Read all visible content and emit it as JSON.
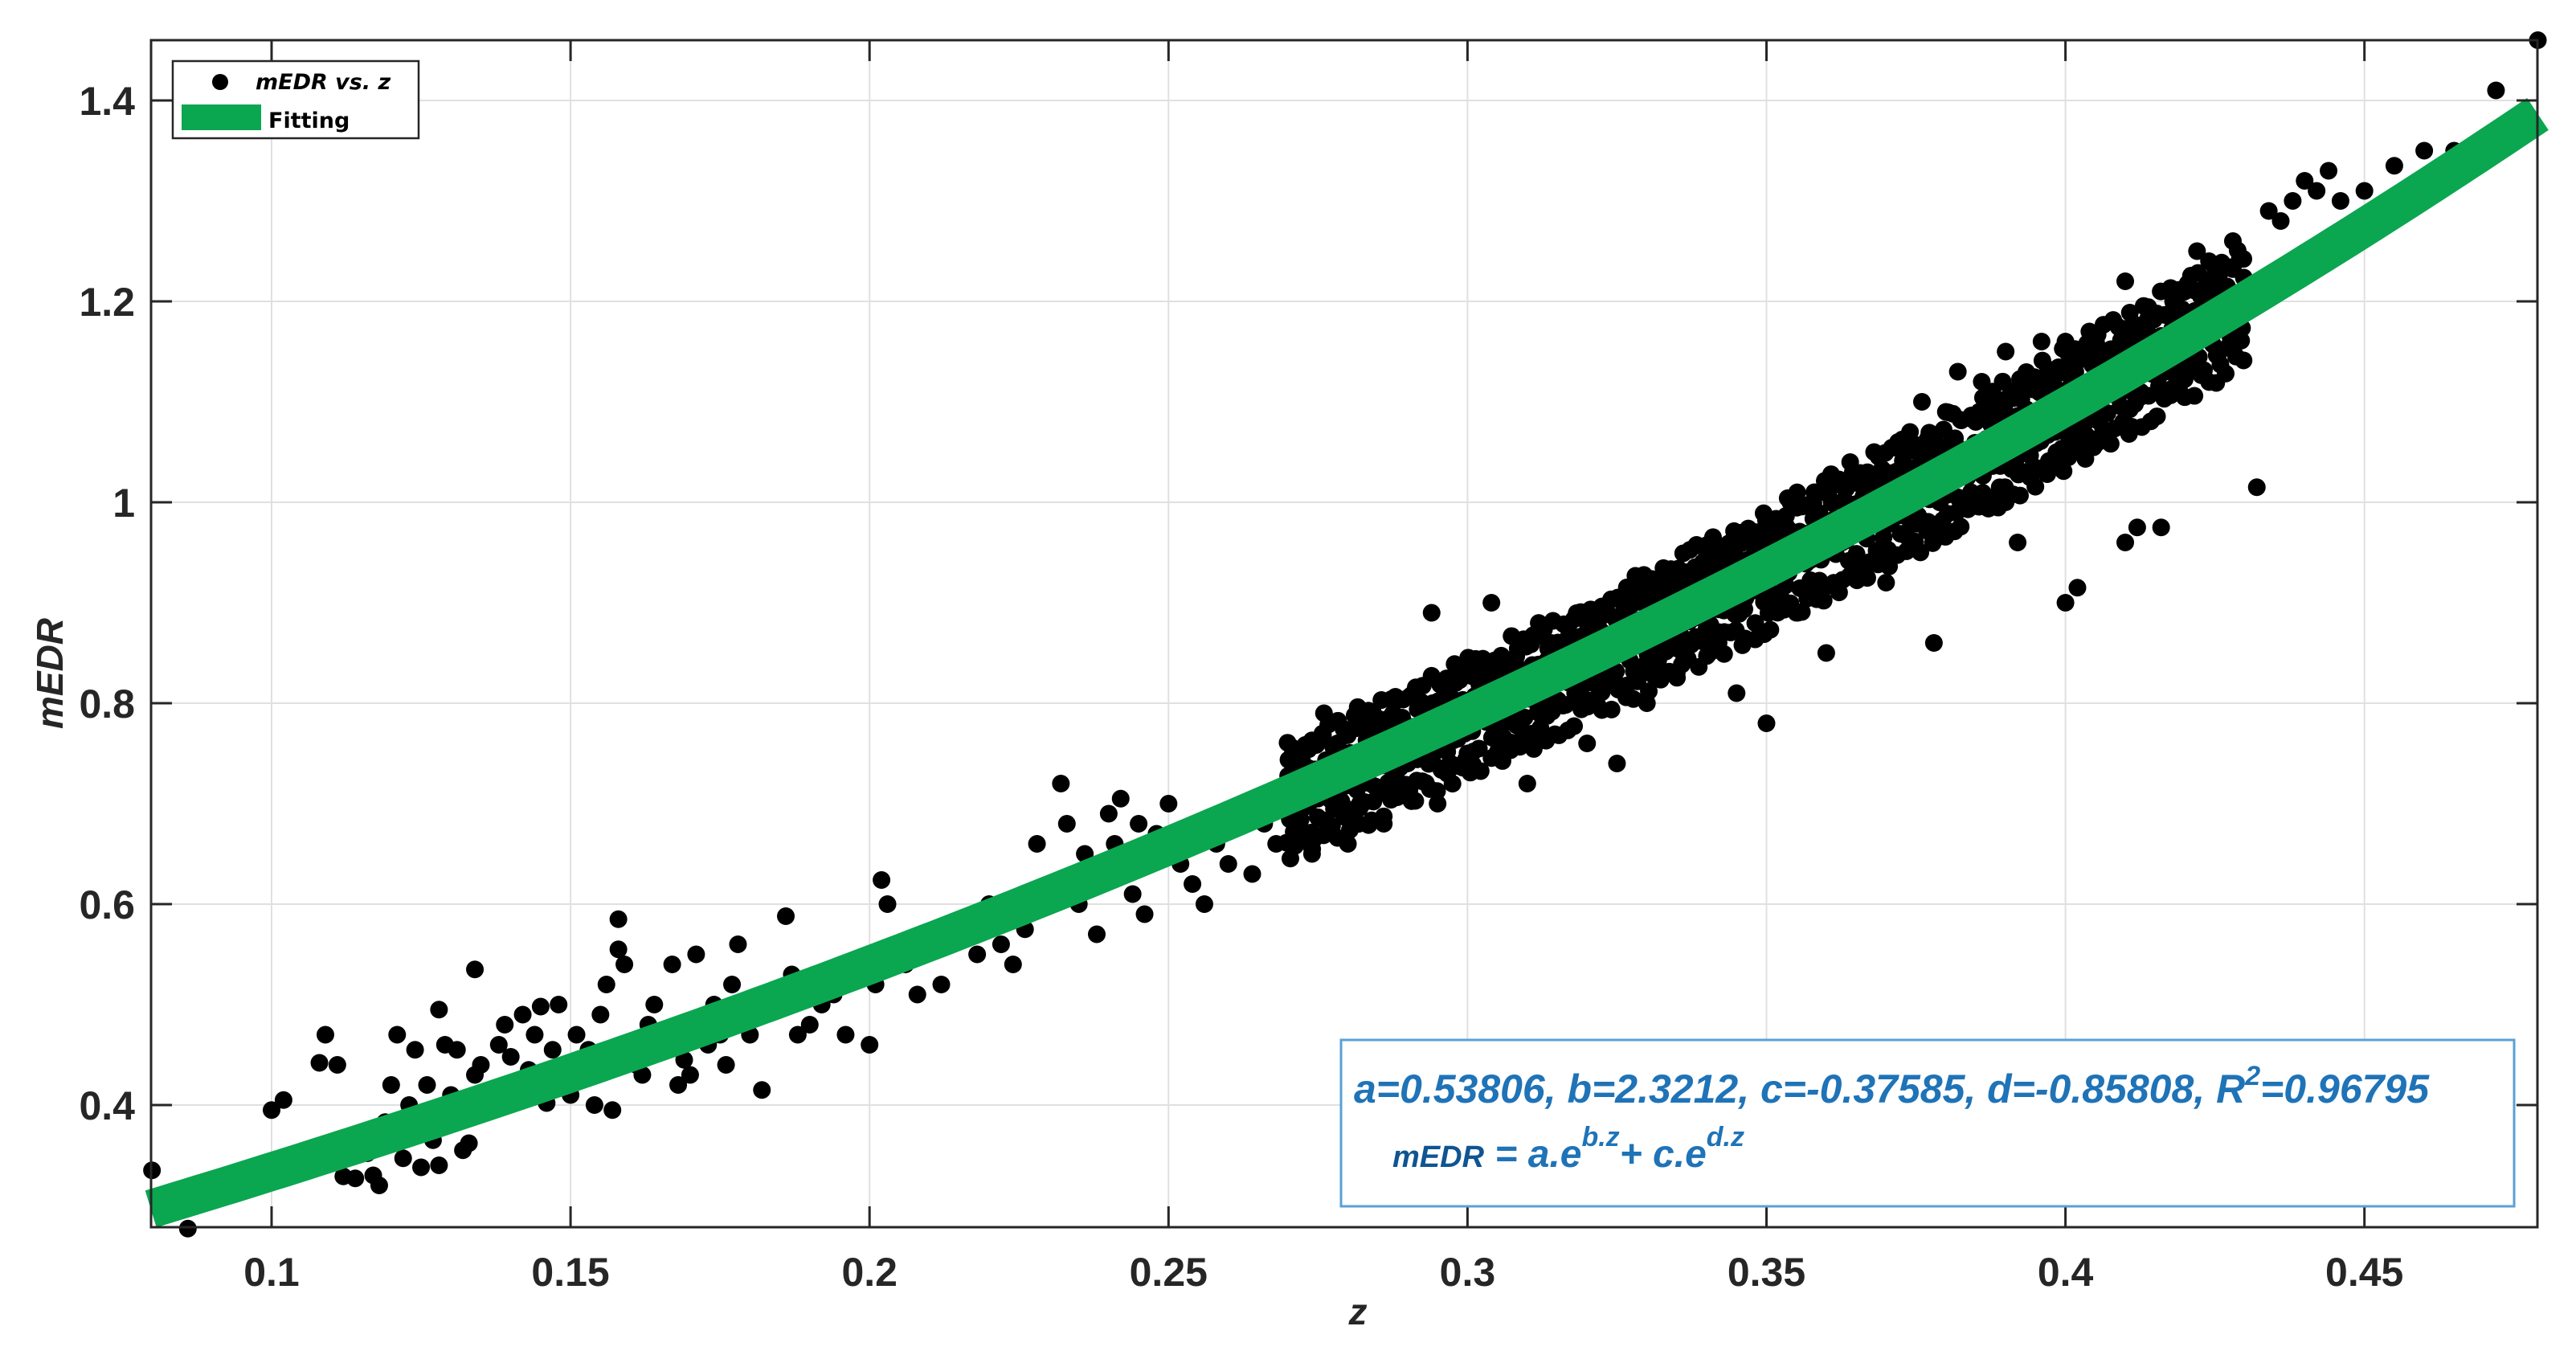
{
  "chart_data": {
    "type": "scatter",
    "title": "",
    "xlabel": "z",
    "ylabel": "mEDR",
    "xlim": [
      0.0798,
      0.479
    ],
    "ylim": [
      0.278,
      1.46
    ],
    "grid": true,
    "legend_position": "upper-left",
    "xticks": [
      0.1,
      0.15,
      0.2,
      0.25,
      0.3,
      0.35,
      0.4,
      0.45
    ],
    "xtick_labels": [
      "0.1",
      "0.15",
      "0.2",
      "0.25",
      "0.3",
      "0.35",
      "0.4",
      "0.45"
    ],
    "yticks": [
      0.4,
      0.6,
      0.8,
      1.0,
      1.2,
      1.4
    ],
    "ytick_labels": [
      "0.4",
      "0.6",
      "0.8",
      "1",
      "1.2",
      "1.4"
    ],
    "series": [
      {
        "name": "mEDR vs. z",
        "type": "scatter",
        "color": "#000000",
        "points": [
          [
            0.08,
            0.335
          ],
          [
            0.086,
            0.277
          ],
          [
            0.1,
            0.395
          ],
          [
            0.102,
            0.405
          ],
          [
            0.101,
            0.325
          ],
          [
            0.108,
            0.442
          ],
          [
            0.109,
            0.47
          ],
          [
            0.111,
            0.44
          ],
          [
            0.112,
            0.329
          ],
          [
            0.114,
            0.327
          ],
          [
            0.116,
            0.352
          ],
          [
            0.117,
            0.33
          ],
          [
            0.118,
            0.32
          ],
          [
            0.119,
            0.383
          ],
          [
            0.12,
            0.42
          ],
          [
            0.121,
            0.47
          ],
          [
            0.122,
            0.347
          ],
          [
            0.123,
            0.4
          ],
          [
            0.124,
            0.455
          ],
          [
            0.125,
            0.338
          ],
          [
            0.126,
            0.42
          ],
          [
            0.127,
            0.365
          ],
          [
            0.128,
            0.495
          ],
          [
            0.128,
            0.34
          ],
          [
            0.129,
            0.46
          ],
          [
            0.13,
            0.41
          ],
          [
            0.131,
            0.455
          ],
          [
            0.132,
            0.355
          ],
          [
            0.133,
            0.362
          ],
          [
            0.134,
            0.535
          ],
          [
            0.134,
            0.43
          ],
          [
            0.135,
            0.44
          ],
          [
            0.136,
            0.405
          ],
          [
            0.137,
            0.415
          ],
          [
            0.138,
            0.46
          ],
          [
            0.139,
            0.48
          ],
          [
            0.14,
            0.448
          ],
          [
            0.141,
            0.42
          ],
          [
            0.142,
            0.49
          ],
          [
            0.143,
            0.435
          ],
          [
            0.144,
            0.47
          ],
          [
            0.145,
            0.498
          ],
          [
            0.146,
            0.402
          ],
          [
            0.147,
            0.455
          ],
          [
            0.148,
            0.5
          ],
          [
            0.149,
            0.43
          ],
          [
            0.15,
            0.41
          ],
          [
            0.151,
            0.47
          ],
          [
            0.152,
            0.442
          ],
          [
            0.153,
            0.455
          ],
          [
            0.154,
            0.4
          ],
          [
            0.155,
            0.49
          ],
          [
            0.156,
            0.52
          ],
          [
            0.157,
            0.395
          ],
          [
            0.158,
            0.585
          ],
          [
            0.158,
            0.555
          ],
          [
            0.159,
            0.54
          ],
          [
            0.16,
            0.46
          ],
          [
            0.161,
            0.44
          ],
          [
            0.162,
            0.43
          ],
          [
            0.163,
            0.48
          ],
          [
            0.164,
            0.5
          ],
          [
            0.165,
            0.47
          ],
          [
            0.166,
            0.455
          ],
          [
            0.167,
            0.54
          ],
          [
            0.168,
            0.42
          ],
          [
            0.169,
            0.445
          ],
          [
            0.17,
            0.43
          ],
          [
            0.171,
            0.55
          ],
          [
            0.172,
            0.48
          ],
          [
            0.173,
            0.46
          ],
          [
            0.174,
            0.5
          ],
          [
            0.175,
            0.47
          ],
          [
            0.176,
            0.44
          ],
          [
            0.177,
            0.52
          ],
          [
            0.178,
            0.56
          ],
          [
            0.179,
            0.495
          ],
          [
            0.18,
            0.47
          ],
          [
            0.182,
            0.415
          ],
          [
            0.184,
            0.5
          ],
          [
            0.186,
            0.588
          ],
          [
            0.187,
            0.53
          ],
          [
            0.188,
            0.47
          ],
          [
            0.19,
            0.48
          ],
          [
            0.192,
            0.5
          ],
          [
            0.194,
            0.51
          ],
          [
            0.196,
            0.47
          ],
          [
            0.198,
            0.54
          ],
          [
            0.2,
            0.46
          ],
          [
            0.201,
            0.52
          ],
          [
            0.202,
            0.624
          ],
          [
            0.203,
            0.6
          ],
          [
            0.204,
            0.55
          ],
          [
            0.206,
            0.54
          ],
          [
            0.208,
            0.51
          ],
          [
            0.21,
            0.56
          ],
          [
            0.212,
            0.52
          ],
          [
            0.214,
            0.57
          ],
          [
            0.216,
            0.58
          ],
          [
            0.218,
            0.55
          ],
          [
            0.22,
            0.6
          ],
          [
            0.222,
            0.56
          ],
          [
            0.224,
            0.54
          ],
          [
            0.226,
            0.575
          ],
          [
            0.228,
            0.66
          ],
          [
            0.23,
            0.62
          ],
          [
            0.232,
            0.72
          ],
          [
            0.233,
            0.68
          ],
          [
            0.235,
            0.6
          ],
          [
            0.236,
            0.65
          ],
          [
            0.238,
            0.57
          ],
          [
            0.24,
            0.69
          ],
          [
            0.241,
            0.66
          ],
          [
            0.242,
            0.705
          ],
          [
            0.243,
            0.64
          ],
          [
            0.244,
            0.61
          ],
          [
            0.245,
            0.68
          ],
          [
            0.246,
            0.59
          ],
          [
            0.248,
            0.67
          ],
          [
            0.25,
            0.7
          ],
          [
            0.252,
            0.64
          ],
          [
            0.254,
            0.62
          ],
          [
            0.256,
            0.6
          ],
          [
            0.258,
            0.66
          ],
          [
            0.26,
            0.64
          ],
          [
            0.262,
            0.69
          ],
          [
            0.264,
            0.63
          ],
          [
            0.266,
            0.68
          ],
          [
            0.268,
            0.66
          ],
          [
            0.27,
            0.7
          ],
          [
            0.272,
            0.67
          ],
          [
            0.274,
            0.65
          ],
          [
            0.276,
            0.79
          ],
          [
            0.278,
            0.72
          ],
          [
            0.28,
            0.66
          ],
          [
            0.282,
            0.7
          ],
          [
            0.284,
            0.77
          ],
          [
            0.286,
            0.68
          ],
          [
            0.288,
            0.72
          ],
          [
            0.29,
            0.74
          ],
          [
            0.292,
            0.76
          ],
          [
            0.294,
            0.89
          ],
          [
            0.295,
            0.7
          ],
          [
            0.296,
            0.78
          ],
          [
            0.298,
            0.82
          ],
          [
            0.3,
            0.8
          ],
          [
            0.3,
            0.75
          ],
          [
            0.302,
            0.83
          ],
          [
            0.304,
            0.9
          ],
          [
            0.305,
            0.77
          ],
          [
            0.306,
            0.81
          ],
          [
            0.308,
            0.84
          ],
          [
            0.31,
            0.83
          ],
          [
            0.31,
            0.72
          ],
          [
            0.312,
            0.79
          ],
          [
            0.314,
            0.86
          ],
          [
            0.316,
            0.85
          ],
          [
            0.318,
            0.81
          ],
          [
            0.32,
            0.88
          ],
          [
            0.32,
            0.76
          ],
          [
            0.322,
            0.87
          ],
          [
            0.324,
            0.83
          ],
          [
            0.325,
            0.74
          ],
          [
            0.326,
            0.89
          ],
          [
            0.328,
            0.91
          ],
          [
            0.33,
            0.88
          ],
          [
            0.33,
            0.8
          ],
          [
            0.332,
            0.9
          ],
          [
            0.334,
            0.92
          ],
          [
            0.335,
            0.83
          ],
          [
            0.336,
            0.86
          ],
          [
            0.338,
            0.93
          ],
          [
            0.34,
            0.95
          ],
          [
            0.34,
            0.87
          ],
          [
            0.342,
            0.9
          ],
          [
            0.344,
            0.96
          ],
          [
            0.345,
            0.81
          ],
          [
            0.346,
            0.97
          ],
          [
            0.348,
            0.93
          ],
          [
            0.35,
            0.98
          ],
          [
            0.35,
            0.78
          ],
          [
            0.352,
            0.94
          ],
          [
            0.354,
            1.0
          ],
          [
            0.355,
            0.89
          ],
          [
            0.356,
            0.96
          ],
          [
            0.358,
            1.01
          ],
          [
            0.36,
            0.98
          ],
          [
            0.36,
            0.85
          ],
          [
            0.362,
            1.02
          ],
          [
            0.364,
            1.04
          ],
          [
            0.365,
            0.94
          ],
          [
            0.366,
            0.99
          ],
          [
            0.368,
            1.05
          ],
          [
            0.37,
            1.03
          ],
          [
            0.37,
            0.92
          ],
          [
            0.372,
            1.06
          ],
          [
            0.374,
            1.07
          ],
          [
            0.375,
            0.98
          ],
          [
            0.376,
            1.1
          ],
          [
            0.378,
            1.05
          ],
          [
            0.378,
            0.86
          ],
          [
            0.38,
            1.09
          ],
          [
            0.382,
            1.13
          ],
          [
            0.384,
            1.04
          ],
          [
            0.385,
            1.08
          ],
          [
            0.386,
            1.12
          ],
          [
            0.388,
            1.1
          ],
          [
            0.39,
            1.15
          ],
          [
            0.39,
            1.0
          ],
          [
            0.392,
            0.96
          ],
          [
            0.394,
            1.12
          ],
          [
            0.396,
            1.16
          ],
          [
            0.398,
            1.13
          ],
          [
            0.4,
            1.16
          ],
          [
            0.4,
            0.9
          ],
          [
            0.402,
            0.915
          ],
          [
            0.404,
            1.17
          ],
          [
            0.406,
            1.15
          ],
          [
            0.408,
            1.18
          ],
          [
            0.41,
            1.22
          ],
          [
            0.41,
            0.96
          ],
          [
            0.412,
            0.975
          ],
          [
            0.414,
            1.19
          ],
          [
            0.416,
            0.975
          ],
          [
            0.418,
            1.2
          ],
          [
            0.42,
            1.21
          ],
          [
            0.422,
            1.25
          ],
          [
            0.424,
            1.24
          ],
          [
            0.426,
            1.23
          ],
          [
            0.428,
            1.26
          ],
          [
            0.432,
            1.015
          ],
          [
            0.434,
            1.29
          ],
          [
            0.436,
            1.28
          ],
          [
            0.438,
            1.3
          ],
          [
            0.44,
            1.32
          ],
          [
            0.442,
            1.31
          ],
          [
            0.444,
            1.33
          ],
          [
            0.446,
            1.3
          ],
          [
            0.45,
            1.31
          ],
          [
            0.455,
            1.335
          ],
          [
            0.46,
            1.35
          ],
          [
            0.465,
            1.35
          ],
          [
            0.472,
            1.41
          ],
          [
            0.479,
            1.46
          ]
        ]
      },
      {
        "name": "Fitting",
        "type": "line",
        "color": "#0ba650",
        "model": "a*exp(b*z) + c*exp(d*z)",
        "params": {
          "a": 0.53806,
          "b": 2.3212,
          "c": -0.37585,
          "d": -0.85808
        },
        "r2": 0.96795,
        "x_range": [
          0.0798,
          0.479
        ]
      }
    ],
    "annotations": [
      "a=0.53806, b=2.3212, c=-0.37585, d=-0.85808, R^2=0.96795",
      "mEDR = a.e^(b.z) + c.e^(d.z)"
    ]
  },
  "legend": {
    "items": [
      {
        "label": "mEDR vs. z",
        "marker": "dot"
      },
      {
        "label": "Fitting",
        "marker": "green-bar"
      }
    ]
  },
  "axes": {
    "xlabel": "z",
    "ylabel": "mEDR"
  },
  "annotation_box": {
    "line1_prefix": "a=0.53806, b=2.3212, c=-0.37585, d=-0.85808, R",
    "line1_sup": "2",
    "line1_suffix": "=0.96795",
    "line2_lhs": "mEDR",
    "line2_eq": " = a.e",
    "line2_sup1": "b.z",
    "line2_mid": "+ c.e",
    "line2_sup2": "d.z"
  },
  "colors": {
    "fit": "#0ba650",
    "points": "#000000",
    "annotation_text": "#1f73b7",
    "annotation_border": "#5aa0d6",
    "grid": "#e0e0e0",
    "axis": "#262626"
  }
}
